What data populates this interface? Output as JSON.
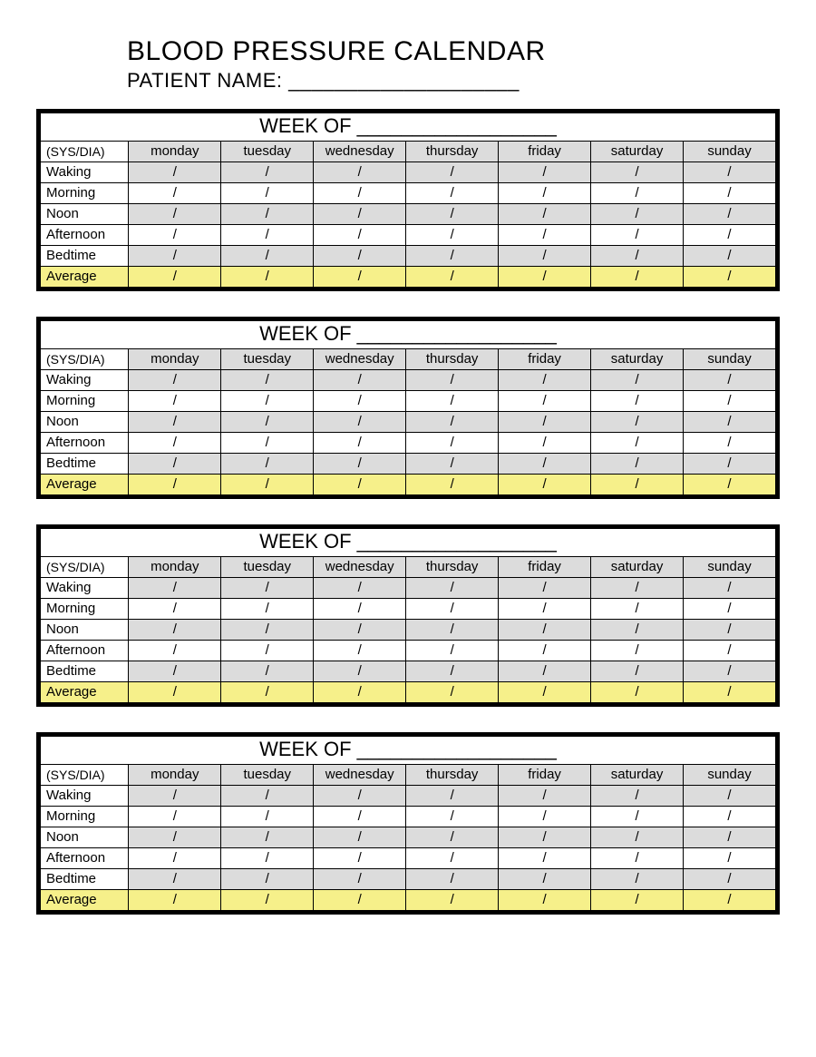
{
  "title": "BLOOD PRESSURE CALENDAR",
  "patient_label": "PATIENT NAME: ____________________",
  "week_title": "WEEK OF __________________",
  "corner_label": "(SYS/DIA)",
  "days": [
    "monday",
    "tuesday",
    "wednesday",
    "thursday",
    "friday",
    "saturday",
    "sunday"
  ],
  "row_labels": [
    "Waking",
    "Morning",
    "Noon",
    "Afternoon",
    "Bedtime"
  ],
  "average_label": "Average",
  "cell_value": "/",
  "num_weeks": 4,
  "colors": {
    "border": "#000000",
    "gray": "#dcdcdc",
    "white": "#ffffff",
    "yellow": "#f6f08a"
  },
  "row_shading": [
    "gray",
    "white",
    "gray",
    "white",
    "gray"
  ]
}
